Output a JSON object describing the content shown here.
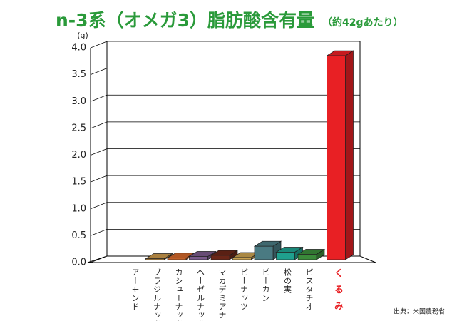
{
  "chart_data": {
    "type": "bar3d",
    "title": "n-3系（オメガ3）脂肪酸含有量",
    "subtitle": "（約42gあたり）",
    "y_unit": "(g)",
    "source": "出典：米国農務省",
    "categories": [
      "アーモンド",
      "ブラジルナッツ",
      "カシューナッツ",
      "ヘーゼルナッツ",
      "マカデミアナッツ",
      "ピーナッツ",
      "ピーカン",
      "松の実",
      "ピスタチオ",
      "くるみ"
    ],
    "values": [
      0,
      0.02,
      0.03,
      0.06,
      0.08,
      0.04,
      0.25,
      0.14,
      0.1,
      3.8
    ],
    "colors": [
      "#c9a05a",
      "#c8964a",
      "#d0662a",
      "#7a5a8a",
      "#6a2618",
      "#c8a050",
      "#4a7a82",
      "#1fa08e",
      "#3a8a3a",
      "#e82024"
    ],
    "ylim": [
      0,
      4
    ],
    "yticks": [
      {
        "value": 0,
        "label": "0.0"
      },
      {
        "value": 0.5,
        "label": "0.5"
      },
      {
        "value": 1,
        "label": "1.0"
      },
      {
        "value": 1.5,
        "label": "1.5"
      },
      {
        "value": 2,
        "label": "2.0"
      },
      {
        "value": 2.5,
        "label": "2.5"
      },
      {
        "value": 3,
        "label": "3.0"
      },
      {
        "value": 3.5,
        "label": "3.5"
      },
      {
        "value": 4,
        "label": "4.0"
      }
    ],
    "grid": true
  }
}
